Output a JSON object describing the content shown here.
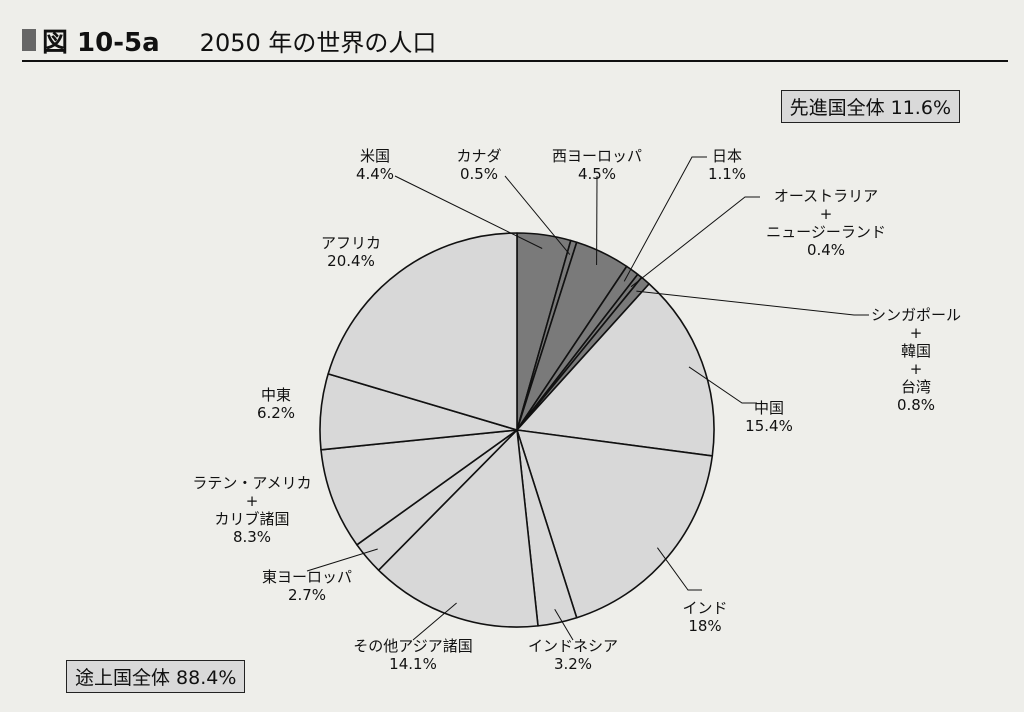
{
  "header": {
    "figure_label": "図 10-5a",
    "title": "2050 年の世界の人口"
  },
  "totals": {
    "developed": "先進国全体 11.6%",
    "developing": "途上国全体 88.4%"
  },
  "colors": {
    "developed": "#7a7a7a",
    "developing": "#d8d8d8",
    "stroke": "#111111"
  },
  "chart_data": {
    "type": "pie",
    "title": "2050 年の世界の人口",
    "unit": "%",
    "start": "12 o'clock",
    "direction": "clockwise",
    "slices": [
      {
        "label": "米国",
        "value": 4.4,
        "value_label": "4.4%",
        "group": "developed"
      },
      {
        "label": "カナダ",
        "value": 0.5,
        "value_label": "0.5%",
        "group": "developed"
      },
      {
        "label": "西ヨーロッパ",
        "value": 4.5,
        "value_label": "4.5%",
        "group": "developed"
      },
      {
        "label": "日本",
        "value": 1.1,
        "value_label": "1.1%",
        "group": "developed"
      },
      {
        "label": "オーストラリア + ニュージーランド",
        "value": 0.4,
        "value_label": "0.4%",
        "group": "developed"
      },
      {
        "label": "シンガポール + 韓国 + 台湾",
        "value": 0.8,
        "value_label": "0.8%",
        "group": "developed"
      },
      {
        "label": "中国",
        "value": 15.4,
        "value_label": "15.4%",
        "group": "developing"
      },
      {
        "label": "インド",
        "value": 18,
        "value_label": "18%",
        "group": "developing"
      },
      {
        "label": "インドネシア",
        "value": 3.2,
        "value_label": "3.2%",
        "group": "developing"
      },
      {
        "label": "その他アジア諸国",
        "value": 14.1,
        "value_label": "14.1%",
        "group": "developing"
      },
      {
        "label": "東ヨーロッパ",
        "value": 2.7,
        "value_label": "2.7%",
        "group": "developing"
      },
      {
        "label": "ラテン・アメリカ + カリブ諸国",
        "value": 8.3,
        "value_label": "8.3%",
        "group": "developing"
      },
      {
        "label": "中東",
        "value": 6.2,
        "value_label": "6.2%",
        "group": "developing"
      },
      {
        "label": "アフリカ",
        "value": 20.4,
        "value_label": "20.4%",
        "group": "developing"
      }
    ]
  },
  "labels": {
    "us": {
      "lines": [
        "米国",
        "4.4%"
      ]
    },
    "canada": {
      "lines": [
        "カナダ",
        "0.5%"
      ]
    },
    "west_europe": {
      "lines": [
        "西ヨーロッパ",
        "4.5%"
      ]
    },
    "japan": {
      "lines": [
        "日本",
        "1.1%"
      ]
    },
    "aus_nz": {
      "lines": [
        "オーストラリア",
        "+",
        "ニュージーランド",
        "0.4%"
      ]
    },
    "sg_kr_tw": {
      "lines": [
        "シンガポール",
        "+",
        "韓国",
        "+",
        "台湾",
        "0.8%"
      ]
    },
    "china": {
      "lines": [
        "中国",
        "15.4%"
      ]
    },
    "india": {
      "lines": [
        "インド",
        "18%"
      ]
    },
    "indonesia": {
      "lines": [
        "インドネシア",
        "3.2%"
      ]
    },
    "other_asia": {
      "lines": [
        "その他アジア諸国",
        "14.1%"
      ]
    },
    "east_europe": {
      "lines": [
        "東ヨーロッパ",
        "2.7%"
      ]
    },
    "latam": {
      "lines": [
        "ラテン・アメリカ",
        "+",
        "カリブ諸国",
        "8.3%"
      ]
    },
    "middle_east": {
      "lines": [
        "中東",
        "6.2%"
      ]
    },
    "africa": {
      "lines": [
        "アフリカ",
        "20.4%"
      ]
    }
  }
}
